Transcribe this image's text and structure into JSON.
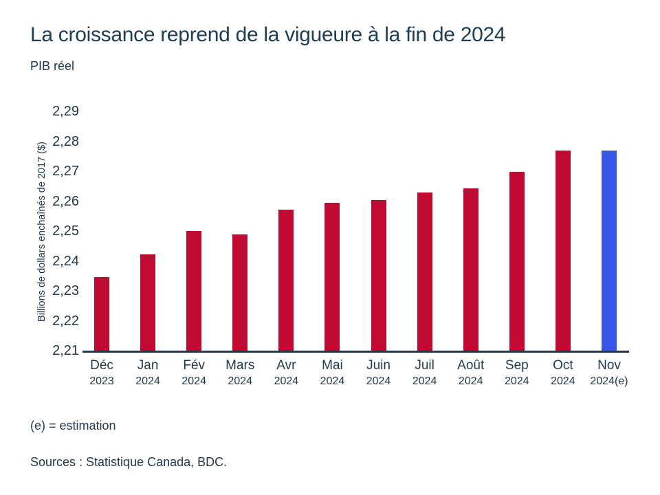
{
  "header": {
    "title": "La croissance reprend de la vigueure à la fin de 2024",
    "subtitle": "PIB réel"
  },
  "footer": {
    "estimation_note": "(e) = estimation",
    "sources": "Sources : Statistique Canada, BDC."
  },
  "colors": {
    "bar_actual": "#be0a30",
    "bar_estimate": "#3a55ea",
    "text": "#22394a",
    "axis": "#233746"
  },
  "chart_data": {
    "type": "bar",
    "title": "La croissance reprend de la vigueure à la fin de 2024",
    "subtitle": "PIB réel",
    "ylabel": "Billions de dollars enchaînés de 2017 ($)",
    "xlabel": "",
    "ylim": [
      2.21,
      2.29
    ],
    "ytick_step": 0.01,
    "ytick_labels": [
      "2,21",
      "2,22",
      "2,23",
      "2,24",
      "2,25",
      "2,26",
      "2,27",
      "2,28",
      "2,29"
    ],
    "grid": false,
    "legend": null,
    "categories": [
      {
        "month": "Déc",
        "year": "2023"
      },
      {
        "month": "Jan",
        "year": "2024"
      },
      {
        "month": "Fév",
        "year": "2024"
      },
      {
        "month": "Mars",
        "year": "2024"
      },
      {
        "month": "Avr",
        "year": "2024"
      },
      {
        "month": "Mai",
        "year": "2024"
      },
      {
        "month": "Juin",
        "year": "2024"
      },
      {
        "month": "Juil",
        "year": "2024"
      },
      {
        "month": "Août",
        "year": "2024"
      },
      {
        "month": "Sep",
        "year": "2024"
      },
      {
        "month": "Oct",
        "year": "2024"
      },
      {
        "month": "Nov",
        "year": "2024(e)"
      }
    ],
    "values": [
      2.2345,
      2.2423,
      2.2499,
      2.2489,
      2.2572,
      2.2595,
      2.2604,
      2.2628,
      2.2643,
      2.2697,
      2.2768,
      2.2768
    ],
    "estimate_index": 11
  }
}
